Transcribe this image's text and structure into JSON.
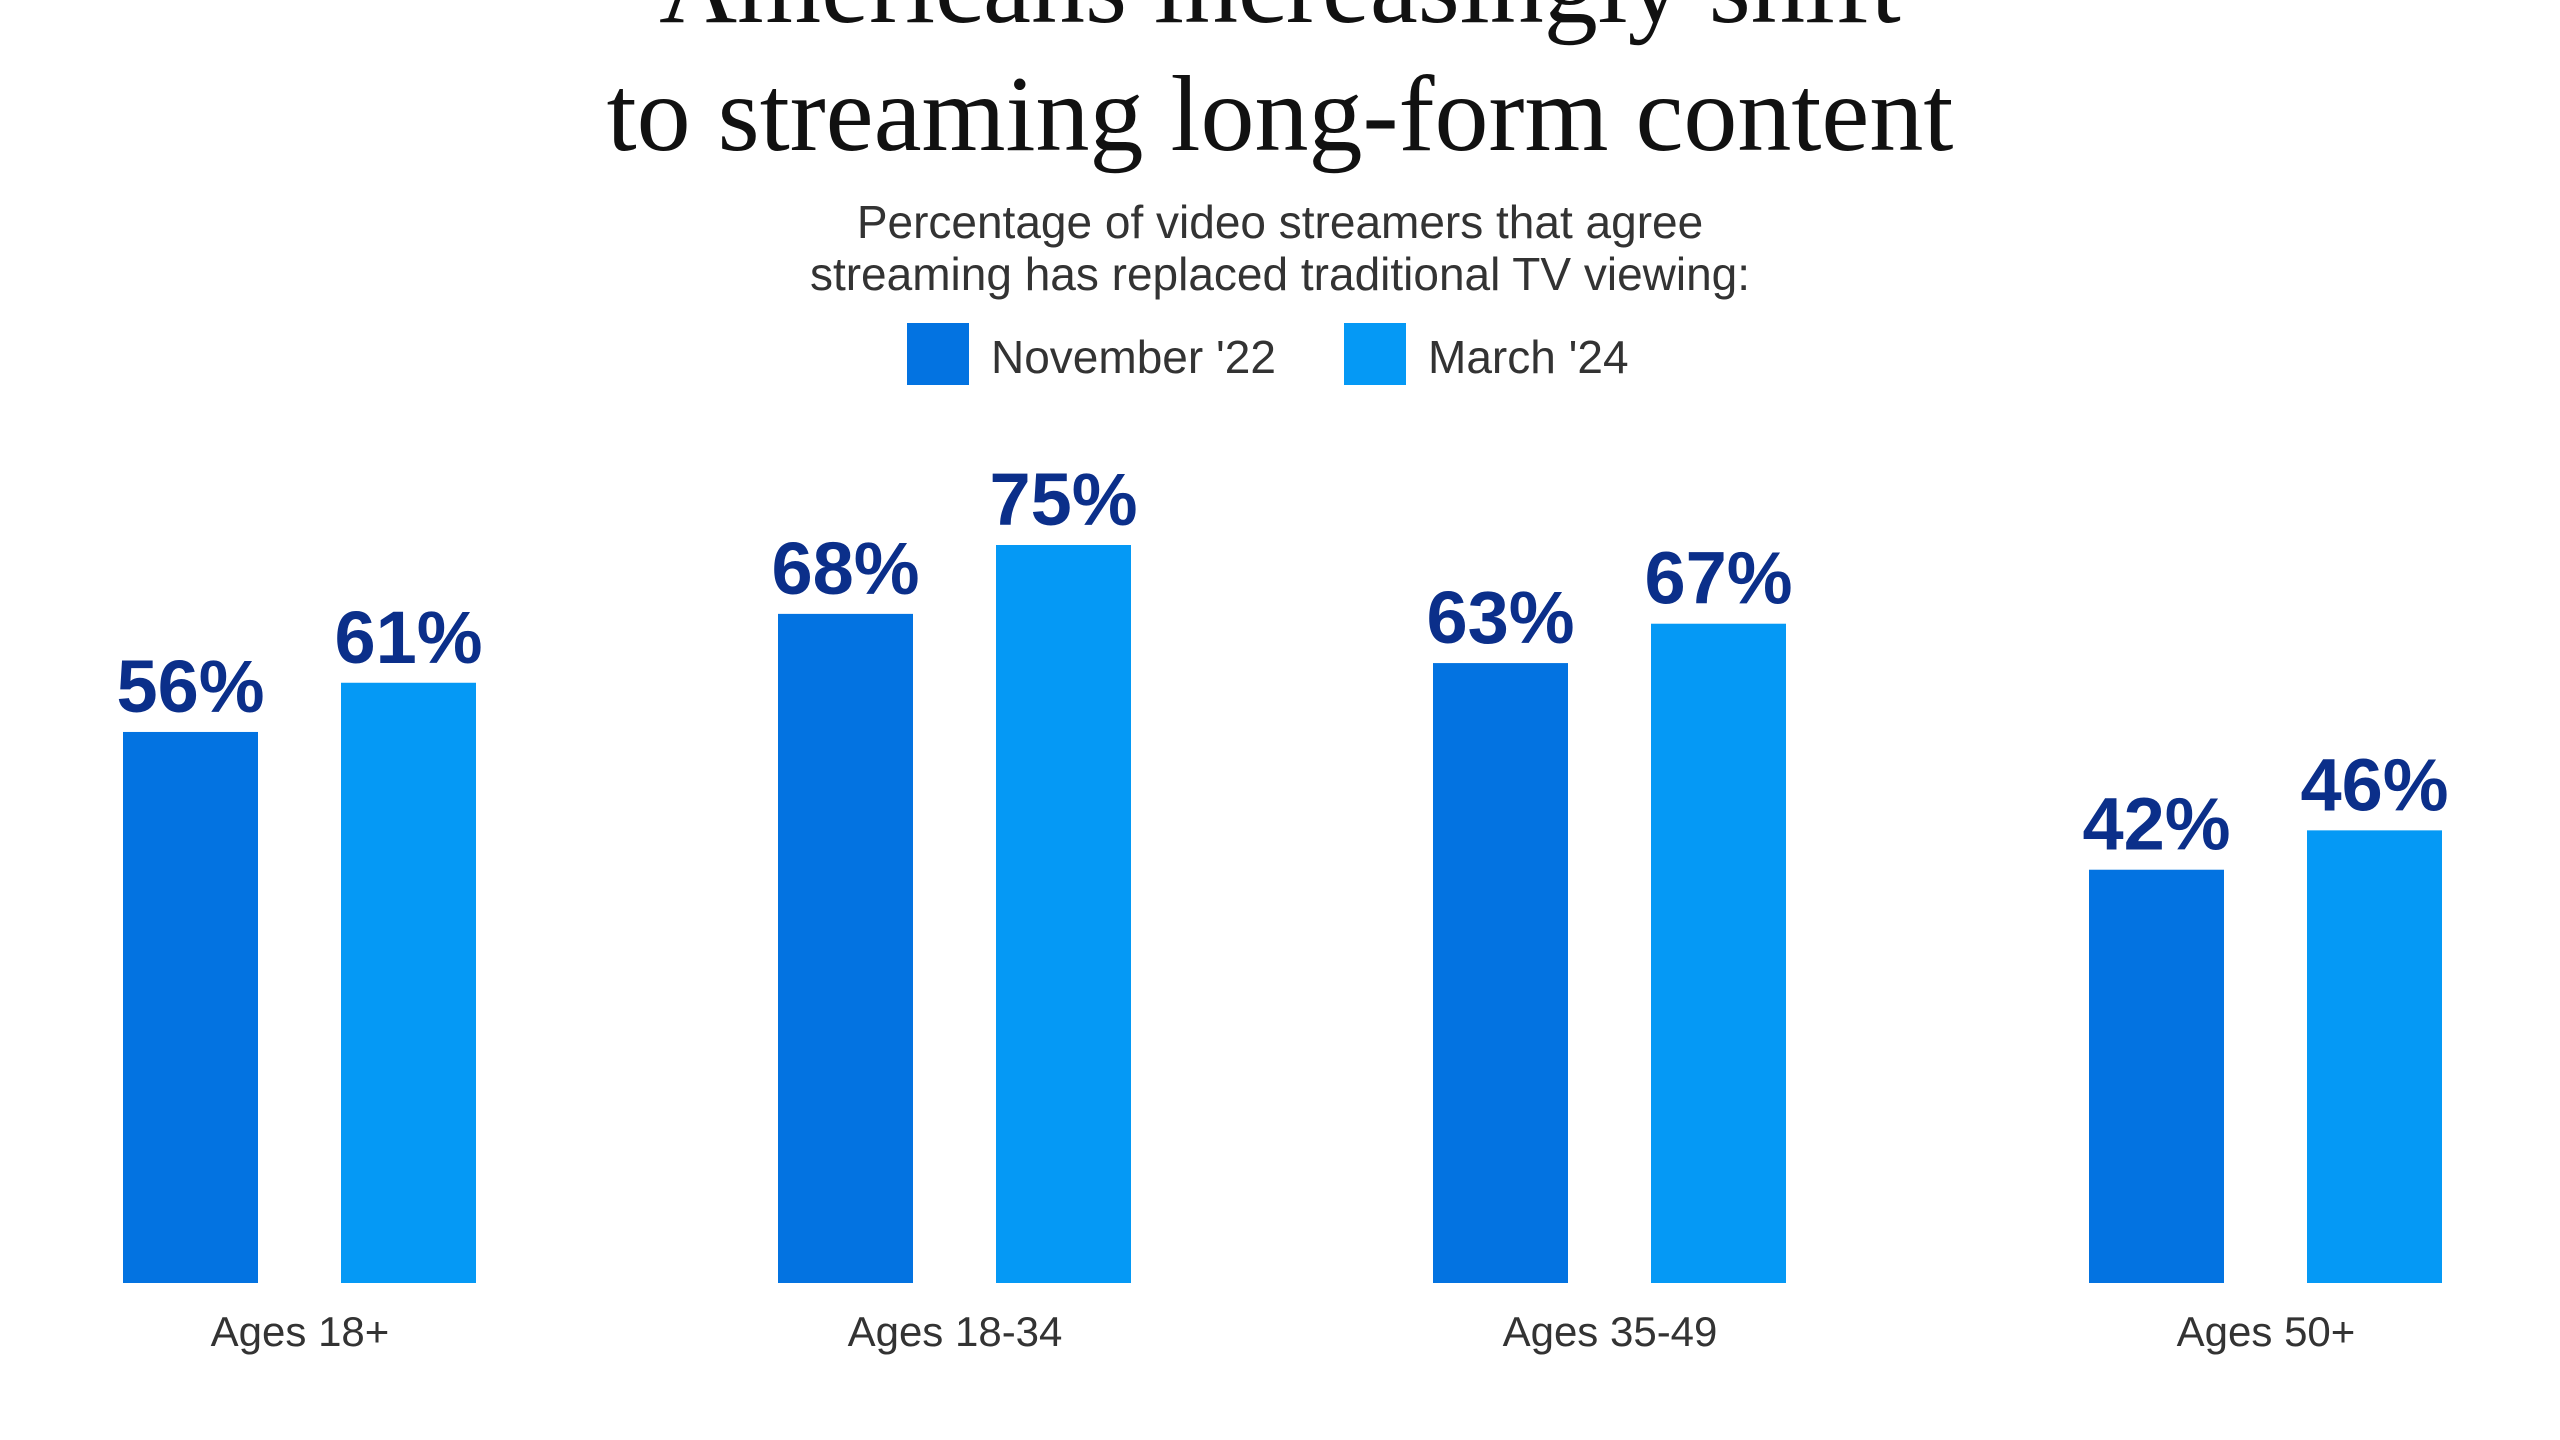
{
  "chart_data": {
    "type": "bar",
    "title": [
      "Americans increasingly shift",
      "to streaming long-form content"
    ],
    "subtitle": [
      "Percentage of video streamers that agree",
      "streaming has replaced traditional TV viewing:"
    ],
    "categories": [
      "Ages 18+",
      "Ages 18-34",
      "Ages 35-49",
      "Ages 50+"
    ],
    "series": [
      {
        "name": "November '22",
        "color": "#0373e1",
        "values": [
          56,
          68,
          63,
          42
        ],
        "value_labels": [
          "56%",
          "68%",
          "63%",
          "42%"
        ]
      },
      {
        "name": "March '24",
        "color": "#0599f5",
        "values": [
          61,
          75,
          67,
          46
        ],
        "value_labels": [
          "61%",
          "75%",
          "67%",
          "46%"
        ]
      }
    ]
  }
}
